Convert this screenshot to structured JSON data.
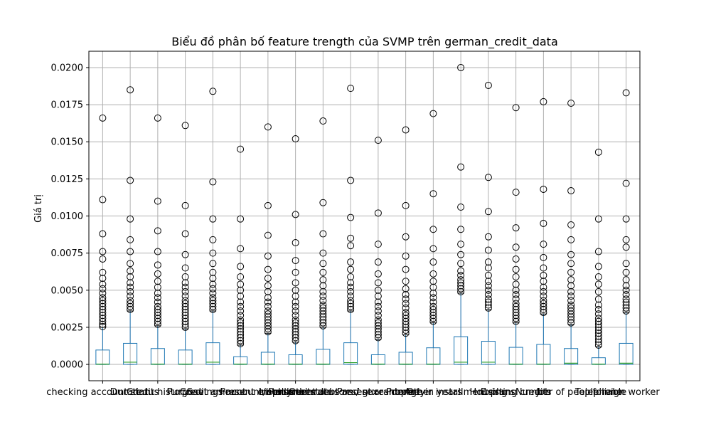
{
  "chart_data": {
    "type": "box",
    "title": "Biểu đồ phân bố feature trength của SVMP trên german_credit_data",
    "xlabel": "",
    "ylabel": "Giá trị",
    "ylim": [
      -0.0011,
      0.0211
    ],
    "yticks": [
      0.0,
      0.0025,
      0.005,
      0.0075,
      0.01,
      0.0125,
      0.015,
      0.0175,
      0.02
    ],
    "ytick_labels": [
      "0.0000",
      "0.0025",
      "0.0050",
      "0.0075",
      "0.0100",
      "0.0125",
      "0.0150",
      "0.0175",
      "0.0200"
    ],
    "grid": true,
    "colors": {
      "box": "#1f77b4",
      "median": "#2ca02c",
      "grid": "#b0b0b0"
    },
    "categories": [
      "checking account status",
      "Duration",
      "Credit history",
      "Purpose",
      "Credit amount",
      "Savings account/bonds",
      "Present employment",
      "Installment rate",
      "Personal status and sex",
      "Other debtors / guarantors",
      "Present residence",
      "Property",
      "Age in years",
      "Other installment plans",
      "Housing",
      "Existing credits",
      "Job",
      "Number of people liable",
      "Telephone",
      "foreign worker"
    ],
    "boxes": [
      {
        "q1": 0.0,
        "median": 2e-05,
        "q3": 0.00097,
        "whisker_low": 0.0,
        "whisker_high": 0.0025,
        "outliers": [
          0.00255,
          0.0027,
          0.0029,
          0.0031,
          0.0033,
          0.0035,
          0.0037,
          0.0039,
          0.0041,
          0.0043,
          0.0045,
          0.0048,
          0.0051,
          0.0054,
          0.0058,
          0.0062,
          0.0071,
          0.0076,
          0.0088,
          0.0111,
          0.0166
        ]
      },
      {
        "q1": 0.0,
        "median": 0.00015,
        "q3": 0.00142,
        "whisker_low": 0.0,
        "whisker_high": 0.0036,
        "outliers": [
          0.0037,
          0.0039,
          0.0041,
          0.0043,
          0.0046,
          0.0049,
          0.0052,
          0.0055,
          0.0059,
          0.0063,
          0.0068,
          0.0076,
          0.0084,
          0.0098,
          0.0124,
          0.0185
        ]
      },
      {
        "q1": 0.0,
        "median": 2e-05,
        "q3": 0.00107,
        "whisker_low": 0.0,
        "whisker_high": 0.0026,
        "outliers": [
          0.0027,
          0.0029,
          0.0031,
          0.0033,
          0.0035,
          0.0037,
          0.0039,
          0.0042,
          0.0045,
          0.0048,
          0.0052,
          0.0056,
          0.0061,
          0.0067,
          0.0076,
          0.009,
          0.011,
          0.0166
        ]
      },
      {
        "q1": 0.0,
        "median": 2e-05,
        "q3": 0.00097,
        "whisker_low": 0.0,
        "whisker_high": 0.0024,
        "outliers": [
          0.0025,
          0.0027,
          0.0029,
          0.0031,
          0.0033,
          0.0035,
          0.0037,
          0.0039,
          0.0041,
          0.0043,
          0.0046,
          0.0049,
          0.0052,
          0.0055,
          0.0059,
          0.0065,
          0.0074,
          0.0088,
          0.0107,
          0.0161
        ]
      },
      {
        "q1": 0.0,
        "median": 0.00015,
        "q3": 0.00146,
        "whisker_low": 0.0,
        "whisker_high": 0.0036,
        "outliers": [
          0.0037,
          0.0039,
          0.0041,
          0.0043,
          0.0045,
          0.0048,
          0.0051,
          0.0054,
          0.0058,
          0.0062,
          0.0068,
          0.0075,
          0.0084,
          0.0098,
          0.0123,
          0.0184
        ]
      },
      {
        "q1": 0.0,
        "median": 2e-05,
        "q3": 0.00052,
        "whisker_low": 0.0,
        "whisker_high": 0.0013,
        "outliers": [
          0.0014,
          0.0016,
          0.0018,
          0.002,
          0.0022,
          0.0024,
          0.0026,
          0.0028,
          0.003,
          0.0033,
          0.0036,
          0.0039,
          0.0042,
          0.0046,
          0.005,
          0.0054,
          0.0059,
          0.0066,
          0.0078,
          0.0098,
          0.0145
        ]
      },
      {
        "q1": 0.0,
        "median": 2e-05,
        "q3": 0.00082,
        "whisker_low": 0.0,
        "whisker_high": 0.0021,
        "outliers": [
          0.0022,
          0.0024,
          0.0026,
          0.0028,
          0.003,
          0.0032,
          0.0034,
          0.0036,
          0.0039,
          0.0042,
          0.0045,
          0.0049,
          0.0053,
          0.0058,
          0.0064,
          0.0073,
          0.0087,
          0.0107,
          0.016
        ]
      },
      {
        "q1": 0.0,
        "median": 2e-05,
        "q3": 0.00065,
        "whisker_low": 0.0,
        "whisker_high": 0.0015,
        "outliers": [
          0.0016,
          0.0018,
          0.002,
          0.0022,
          0.0024,
          0.0026,
          0.0028,
          0.003,
          0.0033,
          0.0036,
          0.0039,
          0.0042,
          0.0046,
          0.005,
          0.0055,
          0.0062,
          0.007,
          0.0082,
          0.0101,
          0.0152
        ]
      },
      {
        "q1": 0.0,
        "median": 2e-05,
        "q3": 0.00102,
        "whisker_low": 0.0,
        "whisker_high": 0.0025,
        "outliers": [
          0.0026,
          0.0028,
          0.003,
          0.0032,
          0.0034,
          0.0036,
          0.0038,
          0.004,
          0.0043,
          0.0046,
          0.0049,
          0.0053,
          0.0057,
          0.0062,
          0.0068,
          0.0075,
          0.0088,
          0.0109,
          0.0164
        ]
      },
      {
        "q1": 0.0,
        "median": 0.00012,
        "q3": 0.00146,
        "whisker_low": 0.0,
        "whisker_high": 0.0036,
        "outliers": [
          0.0037,
          0.0039,
          0.0041,
          0.0043,
          0.0046,
          0.0049,
          0.0052,
          0.0055,
          0.0059,
          0.0064,
          0.0069,
          0.008,
          0.0085,
          0.0099,
          0.0124,
          0.0186
        ]
      },
      {
        "q1": 0.0,
        "median": 2e-05,
        "q3": 0.00065,
        "whisker_low": 0.0,
        "whisker_high": 0.0017,
        "outliers": [
          0.0018,
          0.002,
          0.0022,
          0.0024,
          0.0026,
          0.0028,
          0.003,
          0.0033,
          0.0036,
          0.0039,
          0.0042,
          0.0046,
          0.005,
          0.0055,
          0.0061,
          0.0069,
          0.0081,
          0.0102,
          0.0151
        ]
      },
      {
        "q1": 0.0,
        "median": 2e-05,
        "q3": 0.00082,
        "whisker_low": 0.0,
        "whisker_high": 0.002,
        "outliers": [
          0.0021,
          0.0023,
          0.0025,
          0.0027,
          0.0029,
          0.0031,
          0.0033,
          0.0035,
          0.0038,
          0.0041,
          0.0044,
          0.0047,
          0.0051,
          0.0056,
          0.0064,
          0.0073,
          0.0086,
          0.0107,
          0.0158
        ]
      },
      {
        "q1": 0.0,
        "median": 2e-05,
        "q3": 0.00112,
        "whisker_low": 0.0,
        "whisker_high": 0.0028,
        "outliers": [
          0.0029,
          0.0031,
          0.0033,
          0.0035,
          0.0037,
          0.0039,
          0.0042,
          0.0045,
          0.0048,
          0.0052,
          0.0056,
          0.0061,
          0.0069,
          0.0078,
          0.0091,
          0.0115,
          0.0169
        ]
      },
      {
        "q1": 0.0,
        "median": 0.00015,
        "q3": 0.00187,
        "whisker_low": 0.0,
        "whisker_high": 0.0048,
        "outliers": [
          0.0049,
          0.0051,
          0.0053,
          0.0055,
          0.0057,
          0.006,
          0.0063,
          0.0068,
          0.0074,
          0.0081,
          0.0091,
          0.0106,
          0.0133,
          0.02
        ]
      },
      {
        "q1": 0.0,
        "median": 0.00015,
        "q3": 0.00156,
        "whisker_low": 0.0,
        "whisker_high": 0.0037,
        "outliers": [
          0.0038,
          0.004,
          0.0042,
          0.0044,
          0.0047,
          0.005,
          0.0053,
          0.0056,
          0.006,
          0.0065,
          0.0069,
          0.0077,
          0.0086,
          0.0103,
          0.0126,
          0.0188
        ]
      },
      {
        "q1": 0.0,
        "median": 2e-05,
        "q3": 0.00115,
        "whisker_low": 0.0,
        "whisker_high": 0.0028,
        "outliers": [
          0.0029,
          0.0031,
          0.0033,
          0.0035,
          0.0037,
          0.0039,
          0.0041,
          0.0044,
          0.0047,
          0.005,
          0.0054,
          0.0059,
          0.0064,
          0.0071,
          0.0079,
          0.0092,
          0.0116,
          0.0173
        ]
      },
      {
        "q1": 0.0,
        "median": 2e-05,
        "q3": 0.00135,
        "whisker_low": 0.0,
        "whisker_high": 0.0034,
        "outliers": [
          0.0035,
          0.0037,
          0.0039,
          0.0041,
          0.0043,
          0.0046,
          0.0049,
          0.0052,
          0.0056,
          0.006,
          0.0065,
          0.0072,
          0.0081,
          0.0095,
          0.0118,
          0.0177
        ]
      },
      {
        "q1": 0.0,
        "median": 8e-05,
        "q3": 0.00107,
        "whisker_low": 0.0,
        "whisker_high": 0.0027,
        "outliers": [
          0.0028,
          0.003,
          0.0032,
          0.0034,
          0.0036,
          0.0038,
          0.004,
          0.0043,
          0.0046,
          0.0049,
          0.0053,
          0.0057,
          0.0062,
          0.0068,
          0.0074,
          0.0084,
          0.0094,
          0.0117,
          0.0176
        ]
      },
      {
        "q1": 0.0,
        "median": 2e-05,
        "q3": 0.00045,
        "whisker_low": 0.0,
        "whisker_high": 0.0012,
        "outliers": [
          0.0013,
          0.0015,
          0.0017,
          0.0019,
          0.0021,
          0.0023,
          0.0025,
          0.0027,
          0.0029,
          0.0031,
          0.0034,
          0.0037,
          0.004,
          0.0044,
          0.0049,
          0.0054,
          0.0059,
          0.0066,
          0.0076,
          0.0098,
          0.0143
        ]
      },
      {
        "q1": 0.0,
        "median": 8e-05,
        "q3": 0.00142,
        "whisker_low": 0.0,
        "whisker_high": 0.0035,
        "outliers": [
          0.0036,
          0.0038,
          0.004,
          0.0042,
          0.0044,
          0.0047,
          0.005,
          0.0053,
          0.0057,
          0.0062,
          0.0068,
          0.0079,
          0.0084,
          0.0098,
          0.0122,
          0.0183
        ]
      }
    ]
  }
}
